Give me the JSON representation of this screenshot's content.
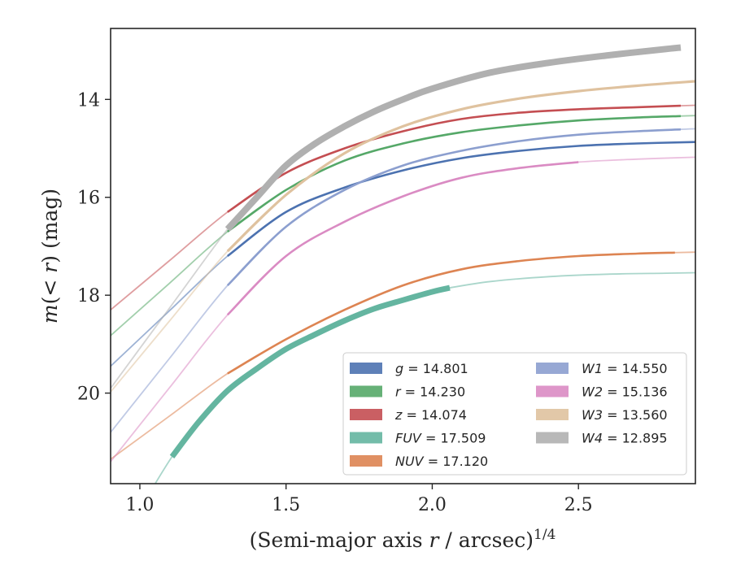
{
  "chart_data": {
    "type": "line",
    "xlabel": "(Semi-major axis r / arcsec)^1/4",
    "ylabel": "m(< r) (mag)",
    "xlim": [
      0.9,
      2.9
    ],
    "ylim": [
      21.85,
      12.55
    ],
    "y_inverted": true,
    "grid": false,
    "legend_position": "lower-right",
    "legend_columns": 2,
    "x_ticks": [
      {
        "value": 1.0,
        "label": "1.0"
      },
      {
        "value": 1.5,
        "label": "1.5"
      },
      {
        "value": 2.0,
        "label": "2.0"
      },
      {
        "value": 2.5,
        "label": "2.5"
      }
    ],
    "y_ticks": [
      {
        "value": 14,
        "label": "14"
      },
      {
        "value": 16,
        "label": "16"
      },
      {
        "value": 18,
        "label": "18"
      },
      {
        "value": 20,
        "label": "20"
      }
    ],
    "series": [
      {
        "band": "g",
        "value": "14.801",
        "color": "#4c72b0",
        "x": [
          1.3,
          1.5,
          1.7,
          1.9,
          2.1,
          2.3,
          2.5,
          2.7,
          2.9
        ],
        "y": [
          17.2,
          16.3,
          15.8,
          15.45,
          15.2,
          15.05,
          14.95,
          14.9,
          14.87
        ],
        "thick_range": [
          1.3,
          2.9
        ]
      },
      {
        "band": "r",
        "value": "14.230",
        "color": "#55a868",
        "x": [
          1.3,
          1.5,
          1.7,
          1.9,
          2.1,
          2.3,
          2.5,
          2.7,
          2.9
        ],
        "y": [
          16.7,
          15.85,
          15.25,
          14.9,
          14.67,
          14.53,
          14.43,
          14.37,
          14.33
        ],
        "thick_range": [
          1.3,
          2.85
        ]
      },
      {
        "band": "z",
        "value": "14.074",
        "color": "#c44e52",
        "x": [
          1.3,
          1.5,
          1.7,
          1.9,
          2.1,
          2.3,
          2.5,
          2.7,
          2.9
        ],
        "y": [
          16.3,
          15.5,
          15.0,
          14.65,
          14.4,
          14.27,
          14.2,
          14.16,
          14.12
        ],
        "thick_range": [
          1.3,
          2.85
        ]
      },
      {
        "band": "FUV",
        "value": "17.509",
        "color": "#64b5a0",
        "x": [
          1.11,
          1.2,
          1.3,
          1.4,
          1.5,
          1.6,
          1.7,
          1.8,
          1.9,
          2.0,
          2.06,
          2.2,
          2.4,
          2.6,
          2.8,
          2.9
        ],
        "y": [
          21.3,
          20.6,
          19.95,
          19.5,
          19.1,
          18.8,
          18.52,
          18.28,
          18.1,
          17.93,
          17.85,
          17.72,
          17.62,
          17.57,
          17.55,
          17.54
        ],
        "thick_range": [
          1.11,
          2.06
        ]
      },
      {
        "band": "NUV",
        "value": "17.120",
        "color": "#dd8452",
        "x": [
          1.3,
          1.5,
          1.7,
          1.9,
          2.1,
          2.3,
          2.5,
          2.7,
          2.9
        ],
        "y": [
          19.6,
          18.9,
          18.3,
          17.8,
          17.47,
          17.3,
          17.2,
          17.15,
          17.12
        ],
        "thick_range": [
          1.3,
          2.83
        ]
      },
      {
        "band": "W1",
        "value": "14.550",
        "color": "#8c9fcf",
        "x": [
          1.3,
          1.5,
          1.7,
          1.9,
          2.1,
          2.3,
          2.5,
          2.7,
          2.9
        ],
        "y": [
          17.8,
          16.6,
          15.85,
          15.35,
          15.05,
          14.85,
          14.72,
          14.65,
          14.6
        ],
        "thick_range": [
          1.3,
          2.85
        ]
      },
      {
        "band": "W2",
        "value": "15.136",
        "color": "#da8bc3",
        "x": [
          1.3,
          1.5,
          1.7,
          1.9,
          2.1,
          2.3,
          2.5,
          2.7,
          2.9
        ],
        "y": [
          18.4,
          17.2,
          16.5,
          15.98,
          15.6,
          15.4,
          15.28,
          15.22,
          15.18
        ],
        "thick_range": [
          1.3,
          2.5
        ]
      },
      {
        "band": "W3",
        "value": "13.560",
        "color": "#dfc29f",
        "x": [
          1.3,
          1.5,
          1.7,
          1.9,
          2.1,
          2.3,
          2.5,
          2.7,
          2.9
        ],
        "y": [
          17.1,
          15.95,
          15.1,
          14.55,
          14.2,
          13.98,
          13.83,
          13.72,
          13.63
        ],
        "thick_range": [
          1.3,
          2.9
        ]
      },
      {
        "band": "W4",
        "value": "12.895",
        "color": "#b0b0b0",
        "x": [
          1.3,
          1.4,
          1.5,
          1.6,
          1.7,
          1.8,
          1.9,
          2.0,
          2.2,
          2.4,
          2.6,
          2.8,
          2.85
        ],
        "y": [
          16.65,
          16.0,
          15.35,
          14.9,
          14.55,
          14.25,
          14.0,
          13.78,
          13.45,
          13.25,
          13.1,
          12.97,
          12.94
        ],
        "thick_range": [
          1.3,
          2.85
        ]
      }
    ]
  }
}
